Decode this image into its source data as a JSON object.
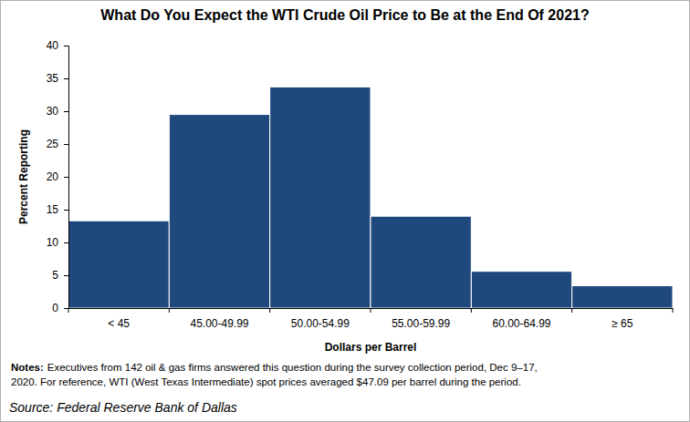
{
  "chart_data": {
    "type": "bar",
    "title": "What Do You Expect the WTI Crude Oil Price to Be at the End Of 2021?",
    "x_label": "Dollars per Barrel",
    "y_label": "Percent Reporting",
    "categories": [
      "< 45",
      "45.00-49.99",
      "50.00-54.99",
      "55.00-59.99",
      "60.00-64.99",
      "≥ 65"
    ],
    "values": [
      13.3,
      29.5,
      33.7,
      14.0,
      5.6,
      3.4
    ],
    "color": "#1f497d",
    "ylim": [
      0,
      40
    ],
    "yticks": [
      0,
      5,
      10,
      15,
      20,
      25,
      30,
      35,
      40
    ],
    "grid": false,
    "notes": [
      "Notes:",
      "Executives from 142 oil & gas firms answered this question during the survey collection period, Dec 9–17,",
      "2020. For reference, WTI (West Texas Intermediate) spot prices averaged $47.09 per barrel during the period."
    ],
    "source": "Source: Federal Reserve Bank of Dallas"
  }
}
